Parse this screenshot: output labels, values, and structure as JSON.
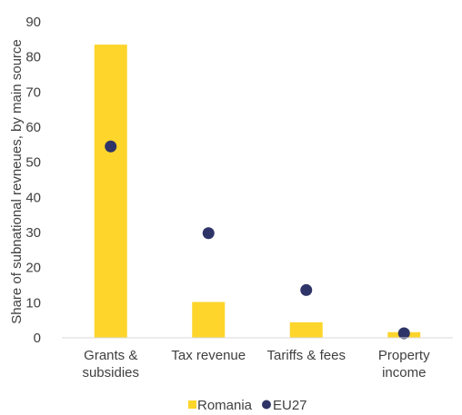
{
  "chart_data": {
    "type": "bar",
    "categories": [
      [
        "Grants &",
        "subsidies"
      ],
      [
        "Tax revenue"
      ],
      [
        "Tariffs & fees"
      ],
      [
        "Property",
        "income"
      ]
    ],
    "series": [
      {
        "name": "Romania",
        "kind": "bar",
        "color": "#FDD52B",
        "values": [
          83.5,
          10.2,
          4.4,
          1.6
        ]
      },
      {
        "name": "EU27",
        "kind": "marker",
        "color": "#2E3467",
        "values": [
          54.5,
          29.8,
          13.6,
          1.3
        ]
      }
    ],
    "ylabel": "Share of subnational revneues, by main source",
    "ylim": [
      0,
      90
    ],
    "yticks": [
      0,
      10,
      20,
      30,
      40,
      50,
      60,
      70,
      80,
      90
    ],
    "grid": false,
    "legend": "bottom"
  }
}
